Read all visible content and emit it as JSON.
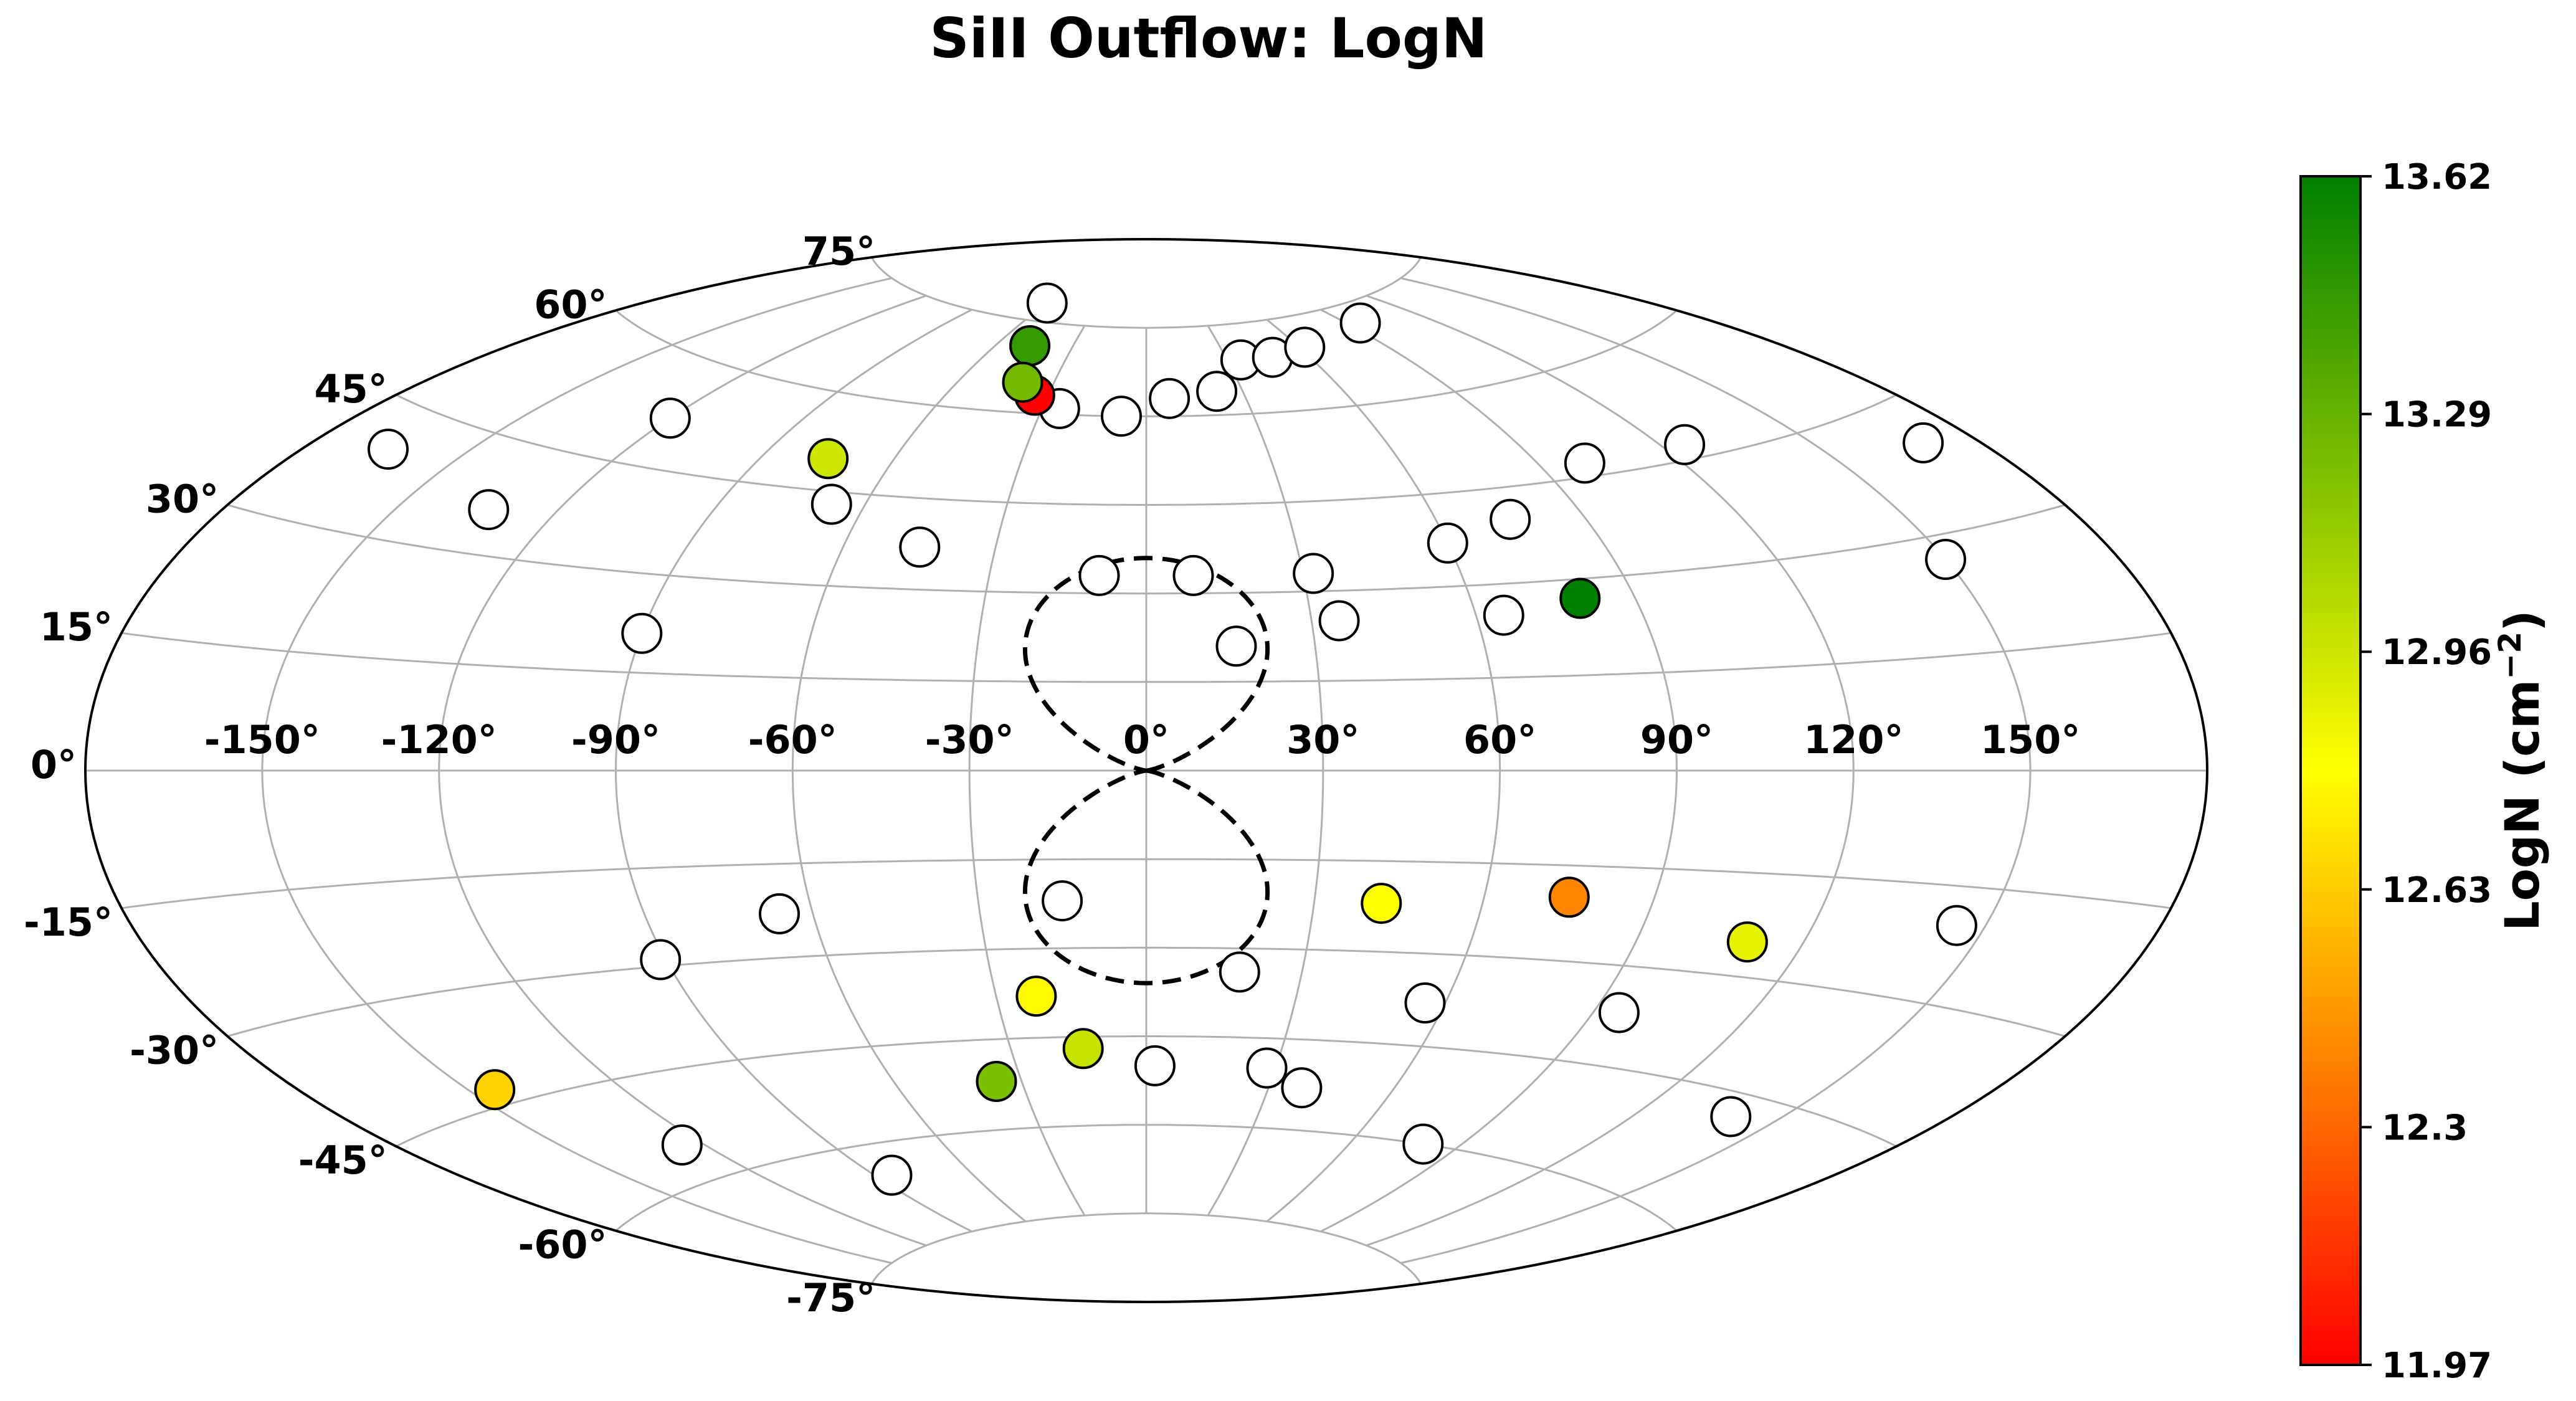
{
  "chart_data": {
    "type": "scatter",
    "title": "SiII Outflow: LogN",
    "projection": "aitoff",
    "longitude_ticks": [
      "-150°",
      "-120°",
      "-90°",
      "-60°",
      "-30°",
      "0°",
      "30°",
      "60°",
      "90°",
      "120°",
      "150°"
    ],
    "latitude_ticks": [
      "-75°",
      "-60°",
      "-45°",
      "-30°",
      "-15°",
      "0°",
      "15°",
      "30°",
      "45°",
      "60°",
      "75°"
    ],
    "grid": true,
    "colorbar": {
      "label": "LogN  (cm",
      "label_exponent": "−2",
      "label_close": ")",
      "min": 11.97,
      "max": 13.62,
      "ticks": [
        "11.97",
        "12.3",
        "12.63",
        "12.96",
        "13.29",
        "13.62"
      ],
      "colors": [
        "#ff0000",
        "#ffff00",
        "#008000"
      ]
    },
    "bubble_outline": {
      "style": "dashed",
      "lon_half_width": 25,
      "lat_range": [
        -36,
        36
      ]
    },
    "detections": [
      {
        "lon": -34,
        "lat": 63,
        "logN": 11.97
      },
      {
        "lon": -47,
        "lat": 71,
        "logN": 13.45
      },
      {
        "lon": -40,
        "lat": 65,
        "logN": 13.25
      },
      {
        "lon": -75,
        "lat": 50,
        "logN": 12.96
      },
      {
        "lon": 80,
        "lat": 27,
        "logN": 13.62
      },
      {
        "lon": 75,
        "lat": -20,
        "logN": 12.4
      },
      {
        "lon": 42,
        "lat": -22,
        "logN": 12.8
      },
      {
        "lon": 110,
        "lat": -25,
        "logN": 12.88
      },
      {
        "lon": -145,
        "lat": -43,
        "logN": 12.65
      },
      {
        "lon": -22,
        "lat": -38,
        "logN": 12.78
      },
      {
        "lon": -14,
        "lat": -47,
        "logN": 12.98
      },
      {
        "lon": -36,
        "lat": -52,
        "logN": 13.22
      }
    ],
    "non_detections": [
      {
        "lon": -60,
        "lat": 78
      },
      {
        "lon": -25,
        "lat": 61
      },
      {
        "lon": -7,
        "lat": 60
      },
      {
        "lon": 7,
        "lat": 63
      },
      {
        "lon": 22,
        "lat": 64
      },
      {
        "lon": 35,
        "lat": 69
      },
      {
        "lon": 47,
        "lat": 69
      },
      {
        "lon": 62,
        "lat": 70
      },
      {
        "lon": 95,
        "lat": 72
      },
      {
        "lon": 100,
        "lat": 47
      },
      {
        "lon": 125,
        "lat": 47
      },
      {
        "lon": 170,
        "lat": 40
      },
      {
        "lon": 150,
        "lat": 27
      },
      {
        "lon": 75,
        "lat": 40
      },
      {
        "lon": 60,
        "lat": 37
      },
      {
        "lon": 32,
        "lat": 33
      },
      {
        "lon": -9,
        "lat": 33
      },
      {
        "lon": 9,
        "lat": 33
      },
      {
        "lon": 35,
        "lat": 25
      },
      {
        "lon": 65,
        "lat": 25
      },
      {
        "lon": 16,
        "lat": 21
      },
      {
        "lon": -45,
        "lat": 37
      },
      {
        "lon": -67,
        "lat": 43
      },
      {
        "lon": -120,
        "lat": 52
      },
      {
        "lon": -165,
        "lat": 40
      },
      {
        "lon": -133,
        "lat": 36
      },
      {
        "lon": -90,
        "lat": 21
      },
      {
        "lon": -66,
        "lat": -23
      },
      {
        "lon": -91,
        "lat": -29
      },
      {
        "lon": -15,
        "lat": -22
      },
      {
        "lon": 18,
        "lat": -34
      },
      {
        "lon": 56,
        "lat": -38
      },
      {
        "lon": 95,
        "lat": -37
      },
      {
        "lon": 145,
        "lat": -20
      },
      {
        "lon": 140,
        "lat": -48
      },
      {
        "lon": -125,
        "lat": -55
      },
      {
        "lon": -85,
        "lat": -65
      },
      {
        "lon": 2,
        "lat": -50
      },
      {
        "lon": 28,
        "lat": -50
      },
      {
        "lon": 38,
        "lat": -53
      },
      {
        "lon": 80,
        "lat": -60
      }
    ]
  }
}
